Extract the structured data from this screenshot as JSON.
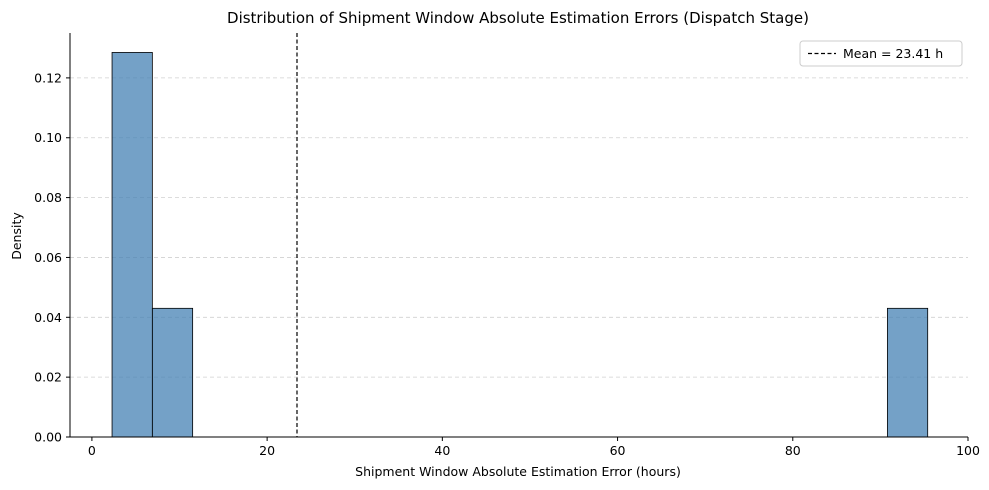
{
  "chart_data": {
    "type": "bar",
    "title": "Distribution of Shipment Window Absolute Estimation Errors (Dispatch Stage)",
    "xlabel": "Shipment Window Absolute Estimation Error (hours)",
    "ylabel": "Density",
    "xlim": [
      -2.5,
      100
    ],
    "ylim": [
      0,
      0.135
    ],
    "xticks": [
      0,
      20,
      40,
      60,
      80,
      100
    ],
    "yticks": [
      "0.00",
      "0.02",
      "0.04",
      "0.06",
      "0.08",
      "0.10",
      "0.12"
    ],
    "bins": [
      {
        "x0": 2.3,
        "x1": 6.9,
        "value": 0.1285
      },
      {
        "x0": 6.9,
        "x1": 11.5,
        "value": 0.043
      },
      {
        "x0": 90.8,
        "x1": 95.4,
        "value": 0.043
      }
    ],
    "mean_line": {
      "x": 23.41,
      "label": "Mean = 23.41 h"
    },
    "colors": {
      "bar": "#4682b4",
      "bar_edge": "#000000",
      "mean": "#000000"
    },
    "grid": "y, dashed",
    "legend_position": "top-right"
  }
}
